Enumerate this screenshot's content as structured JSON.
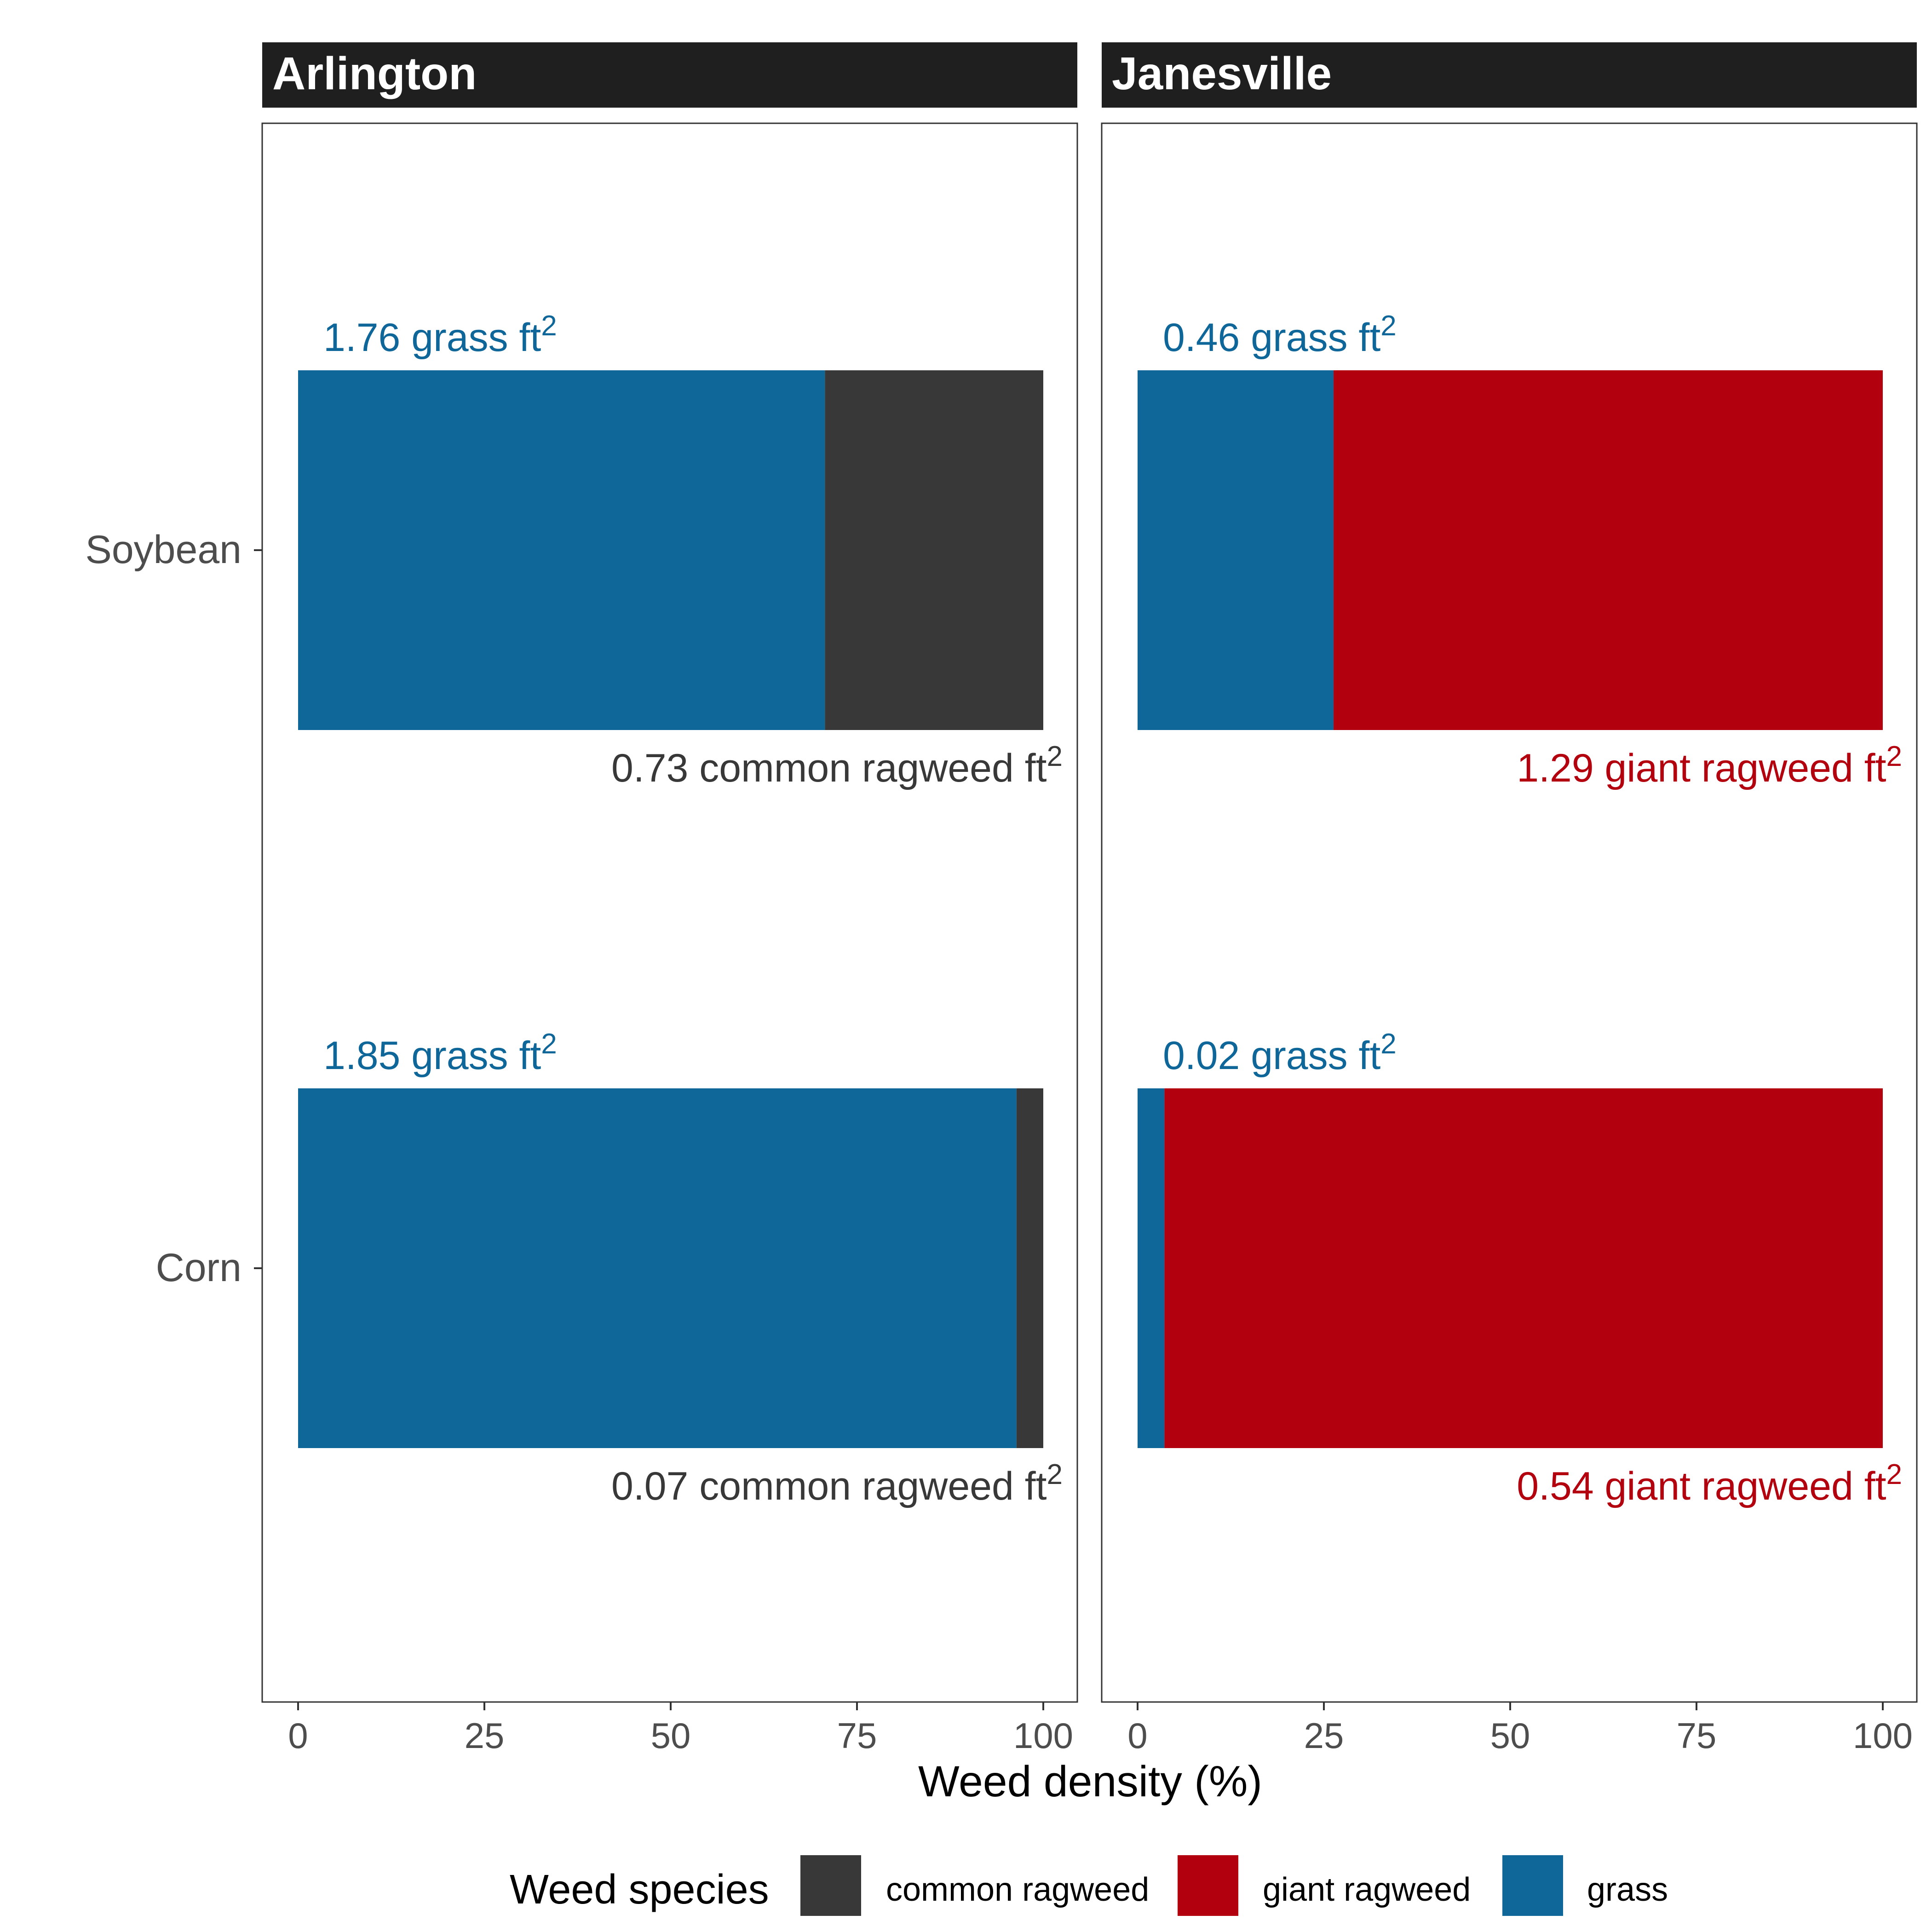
{
  "chart_data": {
    "type": "bar",
    "orientation": "horizontal",
    "stacked": true,
    "xlabel": "Weed density (%)",
    "ylabel": "",
    "xlim": [
      0,
      100
    ],
    "x_ticks": [
      "0",
      "25",
      "50",
      "75",
      "100"
    ],
    "categories": [
      "Soybean",
      "Corn"
    ],
    "legend": {
      "title": "Weed species",
      "position": "bottom",
      "entries": [
        {
          "name": "common ragweed",
          "color": "#383838"
        },
        {
          "name": "giant ragweed",
          "color": "#b3000f"
        },
        {
          "name": "grass",
          "color": "#0f6699"
        }
      ]
    },
    "grid": false,
    "panels": [
      {
        "title": "Arlington",
        "bars": [
          {
            "category": "Soybean",
            "segments": [
              {
                "species": "grass",
                "percent": 70.7
              },
              {
                "species": "common ragweed",
                "percent": 29.3
              }
            ],
            "label_top": {
              "text": "1.76 grass ft",
              "sup": "2",
              "color": "#0f6699"
            },
            "label_bottom": {
              "text": "0.73 common ragweed ft",
              "sup": "2",
              "color": "#383838"
            }
          },
          {
            "category": "Corn",
            "segments": [
              {
                "species": "grass",
                "percent": 96.4
              },
              {
                "species": "common ragweed",
                "percent": 3.6
              }
            ],
            "label_top": {
              "text": "1.85 grass ft",
              "sup": "2",
              "color": "#0f6699"
            },
            "label_bottom": {
              "text": "0.07 common ragweed ft",
              "sup": "2",
              "color": "#383838"
            }
          }
        ]
      },
      {
        "title": "Janesville",
        "bars": [
          {
            "category": "Soybean",
            "segments": [
              {
                "species": "grass",
                "percent": 26.3
              },
              {
                "species": "giant ragweed",
                "percent": 73.7
              }
            ],
            "label_top": {
              "text": "0.46 grass ft",
              "sup": "2",
              "color": "#0f6699"
            },
            "label_bottom": {
              "text": "1.29 giant ragweed ft",
              "sup": "2",
              "color": "#b3000f"
            }
          },
          {
            "category": "Corn",
            "segments": [
              {
                "species": "grass",
                "percent": 3.6
              },
              {
                "species": "giant ragweed",
                "percent": 96.4
              }
            ],
            "label_top": {
              "text": "0.02 grass ft",
              "sup": "2",
              "color": "#0f6699"
            },
            "label_bottom": {
              "text": "0.54 giant ragweed ft",
              "sup": "2",
              "color": "#b3000f"
            }
          }
        ]
      }
    ]
  }
}
